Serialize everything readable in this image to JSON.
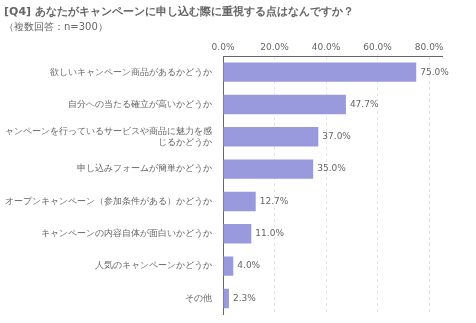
{
  "chart_data": {
    "type": "bar",
    "orientation": "horizontal",
    "title": "[Q4] あなたがキャンペーンに申し込む際に重視する点はなんですか？",
    "subtitle": "（複数回答：n=300）",
    "categories": [
      "欲しいキャンペーン商品があるかどうか",
      "自分への当たる確立が高いかどうか",
      "キャンペーンを行っているサービスや商品に魅力を感\nじるかどうか",
      "申し込みフォームが簡単かどうか",
      "オープンキャンペーン（参加条件がある）かどうか",
      "キャンペーンの内容自体が面白いかどうか",
      "人気のキャンペーンかどうか",
      "その他"
    ],
    "values": [
      75.0,
      47.7,
      37.0,
      35.0,
      12.7,
      11.0,
      4.0,
      2.3
    ],
    "value_labels": [
      "75.0%",
      "47.7%",
      "37.0%",
      "35.0%",
      "12.7%",
      "11.0%",
      "4.0%",
      "2.3%"
    ],
    "data_labels": true,
    "color": "#9999dd",
    "xlim": [
      0,
      85
    ],
    "xticks": [
      {
        "value": 0,
        "label": "0.0%"
      },
      {
        "value": 20,
        "label": "20.0%"
      },
      {
        "value": 40,
        "label": "40.0%"
      },
      {
        "value": 60,
        "label": "60.0%"
      },
      {
        "value": 80,
        "label": "80.0%"
      }
    ],
    "grid": true
  }
}
